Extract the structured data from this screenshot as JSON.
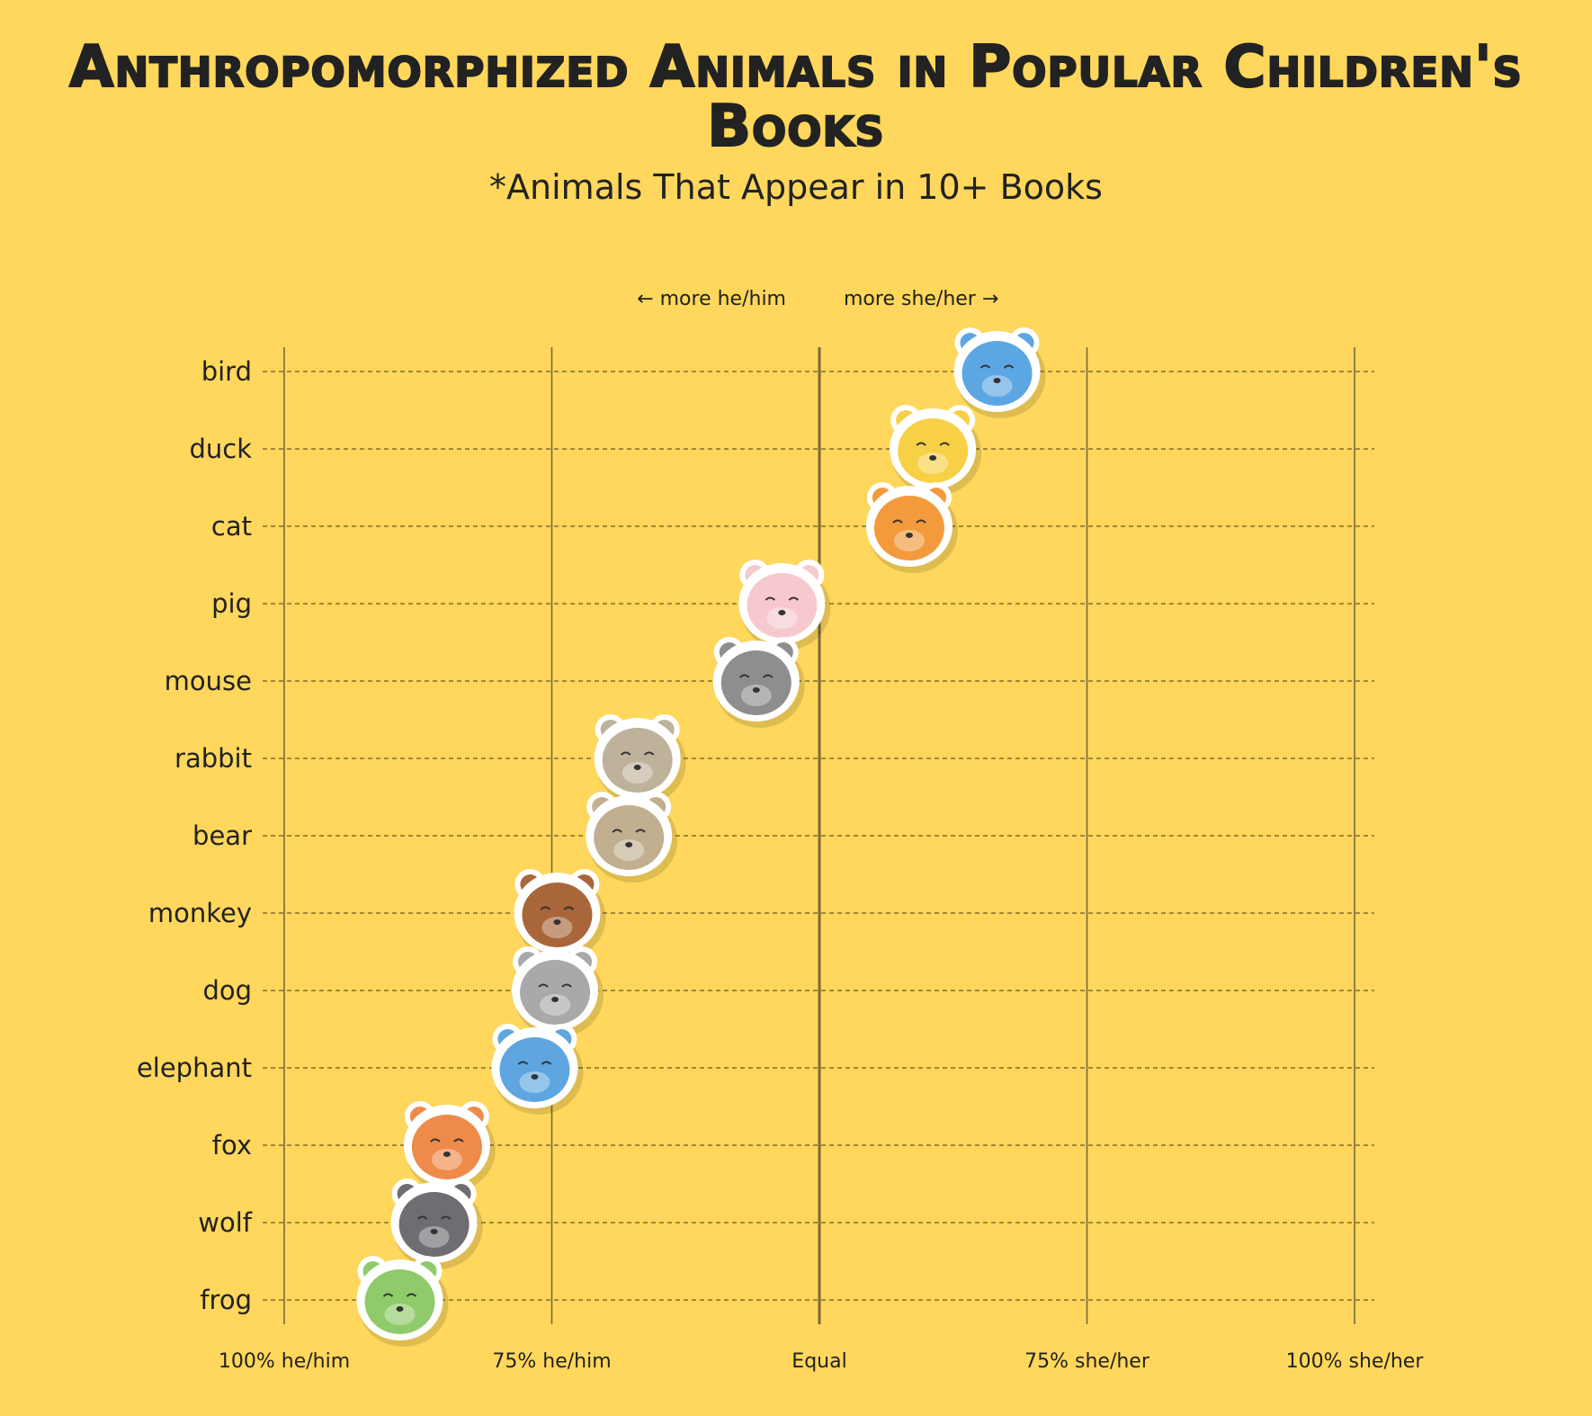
{
  "chart_data": {
    "type": "scatter",
    "title": "Anthropomorphized Animals in Popular Children's Books",
    "subtitle": "*Animals That Appear in 10+ Books",
    "direction_labels": {
      "left": "← more he/him",
      "right": "more she/her →"
    },
    "x_axis": {
      "unit": "percent she/her",
      "range": [
        0,
        100
      ],
      "ticks": [
        {
          "value": 0,
          "label": "100% he/him"
        },
        {
          "value": 25,
          "label": "75% he/him"
        },
        {
          "value": 50,
          "label": "Equal"
        },
        {
          "value": 75,
          "label": "75% she/her"
        },
        {
          "value": 100,
          "label": "100% she/her"
        }
      ]
    },
    "grid": true,
    "points": [
      {
        "animal": "bird",
        "value": 66.6,
        "color": "#5CA6E3"
      },
      {
        "animal": "duck",
        "value": 60.6,
        "color": "#F7D046"
      },
      {
        "animal": "cat",
        "value": 58.4,
        "color": "#F39A3C"
      },
      {
        "animal": "pig",
        "value": 46.5,
        "color": "#F6C9CF"
      },
      {
        "animal": "mouse",
        "value": 44.1,
        "color": "#8E8E90"
      },
      {
        "animal": "rabbit",
        "value": 33.0,
        "color": "#BFB29B"
      },
      {
        "animal": "bear",
        "value": 32.2,
        "color": "#C1AF90"
      },
      {
        "animal": "monkey",
        "value": 25.5,
        "color": "#A8663A"
      },
      {
        "animal": "dog",
        "value": 25.3,
        "color": "#A9A9AC"
      },
      {
        "animal": "elephant",
        "value": 23.4,
        "color": "#5FA6E0"
      },
      {
        "animal": "fox",
        "value": 15.2,
        "color": "#EE8A4A"
      },
      {
        "animal": "wolf",
        "value": 14.0,
        "color": "#6E6E72"
      },
      {
        "animal": "frog",
        "value": 10.8,
        "color": "#8FCB6B"
      }
    ]
  }
}
